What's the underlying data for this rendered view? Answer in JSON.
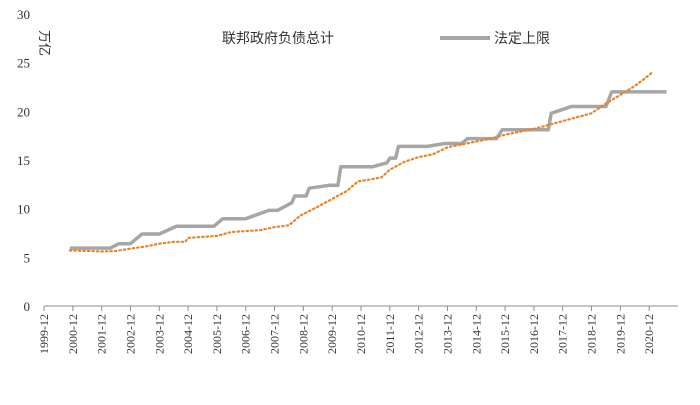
{
  "chart_data": {
    "type": "line",
    "unit": "万亿",
    "ylim": [
      0,
      30
    ],
    "yticks": [
      "0",
      "5",
      "10",
      "15",
      "20",
      "25",
      "30"
    ],
    "categories": [
      "1999-12",
      "2000-12",
      "2001-12",
      "2002-12",
      "2003-12",
      "2004-12",
      "2005-12",
      "2006-12",
      "2007-12",
      "2008-12",
      "2009-12",
      "2010-12",
      "2011-12",
      "2012-12",
      "2013-12",
      "2014-12",
      "2015-12",
      "2016-12",
      "2017-12",
      "2018-12",
      "2019-12",
      "2020-12"
    ],
    "legend": {
      "placement": "top"
    },
    "series": [
      {
        "name": "联邦政府负债总计",
        "style": "dotted",
        "color": "#e8832a",
        "points": [
          [
            1999.9,
            5.7
          ],
          [
            2000.5,
            5.65
          ],
          [
            2001.0,
            5.6
          ],
          [
            2001.5,
            5.65
          ],
          [
            2002.0,
            5.9
          ],
          [
            2002.5,
            6.1
          ],
          [
            2003.0,
            6.4
          ],
          [
            2003.5,
            6.6
          ],
          [
            2003.9,
            6.6
          ],
          [
            2004.0,
            7.0
          ],
          [
            2004.5,
            7.1
          ],
          [
            2005.0,
            7.2
          ],
          [
            2005.5,
            7.6
          ],
          [
            2006.0,
            7.7
          ],
          [
            2006.5,
            7.8
          ],
          [
            2007.0,
            8.1
          ],
          [
            2007.5,
            8.3
          ],
          [
            2007.9,
            9.3
          ],
          [
            2008.5,
            10.2
          ],
          [
            2009.0,
            11.0
          ],
          [
            2009.5,
            11.8
          ],
          [
            2009.9,
            12.8
          ],
          [
            2010.3,
            13.0
          ],
          [
            2010.7,
            13.2
          ],
          [
            2011.0,
            14.0
          ],
          [
            2011.5,
            14.8
          ],
          [
            2012.0,
            15.3
          ],
          [
            2012.5,
            15.6
          ],
          [
            2013.0,
            16.3
          ],
          [
            2013.5,
            16.6
          ],
          [
            2014.0,
            16.9
          ],
          [
            2014.5,
            17.2
          ],
          [
            2015.0,
            17.6
          ],
          [
            2015.5,
            17.9
          ],
          [
            2016.0,
            18.2
          ],
          [
            2016.5,
            18.6
          ],
          [
            2017.0,
            19.0
          ],
          [
            2017.5,
            19.4
          ],
          [
            2018.0,
            19.8
          ],
          [
            2018.5,
            20.8
          ],
          [
            2019.0,
            21.7
          ],
          [
            2019.5,
            22.6
          ],
          [
            2019.9,
            23.5
          ],
          [
            2020.1,
            24.0
          ]
        ]
      },
      {
        "name": "法定上限",
        "style": "solid",
        "color": "#a6a6a6",
        "points": [
          [
            1999.9,
            5.95
          ],
          [
            2001.3,
            5.95
          ],
          [
            2001.6,
            6.4
          ],
          [
            2002.0,
            6.4
          ],
          [
            2002.4,
            7.4
          ],
          [
            2003.0,
            7.4
          ],
          [
            2003.6,
            8.2
          ],
          [
            2004.9,
            8.2
          ],
          [
            2005.2,
            8.97
          ],
          [
            2006.0,
            8.97
          ],
          [
            2006.8,
            9.82
          ],
          [
            2007.1,
            9.82
          ],
          [
            2007.6,
            10.6
          ],
          [
            2007.7,
            11.3
          ],
          [
            2008.1,
            11.3
          ],
          [
            2008.2,
            12.1
          ],
          [
            2008.9,
            12.4
          ],
          [
            2009.2,
            12.4
          ],
          [
            2009.3,
            14.3
          ],
          [
            2010.4,
            14.3
          ],
          [
            2010.9,
            14.7
          ],
          [
            2011.0,
            15.2
          ],
          [
            2011.2,
            15.2
          ],
          [
            2011.3,
            16.4
          ],
          [
            2012.3,
            16.4
          ],
          [
            2012.9,
            16.7
          ],
          [
            2013.5,
            16.7
          ],
          [
            2013.7,
            17.2
          ],
          [
            2014.7,
            17.2
          ],
          [
            2014.9,
            18.1
          ],
          [
            2016.5,
            18.1
          ],
          [
            2016.6,
            19.8
          ],
          [
            2017.3,
            20.5
          ],
          [
            2018.5,
            20.5
          ],
          [
            2018.7,
            22.0
          ],
          [
            2020.6,
            22.0
          ]
        ]
      }
    ]
  }
}
